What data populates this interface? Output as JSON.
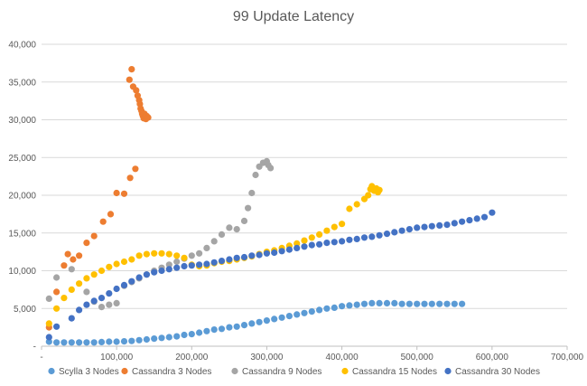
{
  "chart_data": {
    "type": "scatter",
    "title": "99 Update Latency",
    "xlabel": "",
    "ylabel": "",
    "xlim": [
      0,
      700000
    ],
    "ylim": [
      0,
      40000
    ],
    "x_ticks": [
      0,
      100000,
      200000,
      300000,
      400000,
      500000,
      600000,
      700000
    ],
    "x_tick_labels": [
      "-",
      "100,000",
      "200,000",
      "300,000",
      "400,000",
      "500,000",
      "600,000",
      "700,000"
    ],
    "y_ticks": [
      0,
      5000,
      10000,
      15000,
      20000,
      25000,
      30000,
      35000,
      40000
    ],
    "y_tick_labels": [
      "-",
      "5,000",
      "10,000",
      "15,000",
      "20,000",
      "25,000",
      "30,000",
      "35,000",
      "40,000"
    ],
    "grid": true,
    "legend_position": "bottom",
    "series": [
      {
        "name": "Scylla 3 Nodes",
        "color": "#5b9bd5",
        "points": [
          [
            10000,
            600
          ],
          [
            20000,
            500
          ],
          [
            30000,
            500
          ],
          [
            40000,
            500
          ],
          [
            50000,
            500
          ],
          [
            60000,
            500
          ],
          [
            70000,
            500
          ],
          [
            80000,
            550
          ],
          [
            90000,
            600
          ],
          [
            100000,
            600
          ],
          [
            110000,
            650
          ],
          [
            120000,
            700
          ],
          [
            130000,
            800
          ],
          [
            140000,
            900
          ],
          [
            150000,
            1000
          ],
          [
            160000,
            1100
          ],
          [
            170000,
            1200
          ],
          [
            180000,
            1300
          ],
          [
            190000,
            1500
          ],
          [
            200000,
            1600
          ],
          [
            210000,
            1800
          ],
          [
            220000,
            2000
          ],
          [
            230000,
            2200
          ],
          [
            240000,
            2300
          ],
          [
            250000,
            2500
          ],
          [
            260000,
            2600
          ],
          [
            270000,
            2800
          ],
          [
            280000,
            3000
          ],
          [
            290000,
            3200
          ],
          [
            300000,
            3400
          ],
          [
            310000,
            3600
          ],
          [
            320000,
            3800
          ],
          [
            330000,
            4000
          ],
          [
            340000,
            4200
          ],
          [
            350000,
            4400
          ],
          [
            360000,
            4600
          ],
          [
            370000,
            4800
          ],
          [
            380000,
            5000
          ],
          [
            390000,
            5100
          ],
          [
            400000,
            5300
          ],
          [
            410000,
            5400
          ],
          [
            420000,
            5500
          ],
          [
            430000,
            5600
          ],
          [
            440000,
            5700
          ],
          [
            450000,
            5700
          ],
          [
            460000,
            5700
          ],
          [
            470000,
            5700
          ],
          [
            480000,
            5600
          ],
          [
            490000,
            5600
          ],
          [
            500000,
            5600
          ],
          [
            510000,
            5600
          ],
          [
            520000,
            5600
          ],
          [
            530000,
            5600
          ],
          [
            540000,
            5600
          ],
          [
            550000,
            5600
          ],
          [
            560000,
            5600
          ]
        ]
      },
      {
        "name": "Cassandra 3 Nodes",
        "color": "#ed7d31",
        "points": [
          [
            10000,
            2500
          ],
          [
            20000,
            7200
          ],
          [
            30000,
            10700
          ],
          [
            35000,
            12200
          ],
          [
            42000,
            11500
          ],
          [
            50000,
            12000
          ],
          [
            60000,
            13700
          ],
          [
            70000,
            14600
          ],
          [
            82000,
            16500
          ],
          [
            92000,
            17500
          ],
          [
            100000,
            20300
          ],
          [
            110000,
            20200
          ],
          [
            118000,
            22300
          ],
          [
            125000,
            23500
          ],
          [
            117000,
            35300
          ],
          [
            120000,
            36700
          ],
          [
            122000,
            34400
          ],
          [
            126000,
            33900
          ],
          [
            128000,
            33200
          ],
          [
            130000,
            32600
          ],
          [
            131000,
            32100
          ],
          [
            132000,
            31500
          ],
          [
            133000,
            31200
          ],
          [
            134000,
            30800
          ],
          [
            135000,
            30500
          ],
          [
            136000,
            30200
          ],
          [
            137000,
            30800
          ],
          [
            138000,
            30400
          ],
          [
            139000,
            30100
          ],
          [
            140000,
            30500
          ],
          [
            142000,
            30300
          ]
        ]
      },
      {
        "name": "Cassandra 9 Nodes",
        "color": "#a5a5a5",
        "points": [
          [
            10000,
            6300
          ],
          [
            20000,
            9100
          ],
          [
            40000,
            10200
          ],
          [
            60000,
            7200
          ],
          [
            70000,
            5900
          ],
          [
            80000,
            5200
          ],
          [
            90000,
            5500
          ],
          [
            100000,
            5700
          ],
          [
            110000,
            8000
          ],
          [
            120000,
            8500
          ],
          [
            130000,
            9000
          ],
          [
            140000,
            9500
          ],
          [
            150000,
            10000
          ],
          [
            160000,
            10400
          ],
          [
            170000,
            10800
          ],
          [
            180000,
            11200
          ],
          [
            190000,
            11600
          ],
          [
            200000,
            12000
          ],
          [
            210000,
            12300
          ],
          [
            220000,
            13000
          ],
          [
            230000,
            13900
          ],
          [
            240000,
            14800
          ],
          [
            250000,
            15700
          ],
          [
            260000,
            15500
          ],
          [
            270000,
            16600
          ],
          [
            275000,
            18300
          ],
          [
            280000,
            20300
          ],
          [
            285000,
            22700
          ],
          [
            290000,
            23800
          ],
          [
            295000,
            24300
          ],
          [
            300000,
            24500
          ],
          [
            302000,
            24000
          ],
          [
            305000,
            23600
          ]
        ]
      },
      {
        "name": "Cassandra 15 Nodes",
        "color": "#ffc000",
        "points": [
          [
            10000,
            3000
          ],
          [
            20000,
            5000
          ],
          [
            30000,
            6400
          ],
          [
            40000,
            7500
          ],
          [
            50000,
            8300
          ],
          [
            60000,
            9000
          ],
          [
            70000,
            9500
          ],
          [
            80000,
            10000
          ],
          [
            90000,
            10500
          ],
          [
            100000,
            10900
          ],
          [
            110000,
            11200
          ],
          [
            120000,
            11500
          ],
          [
            130000,
            12000
          ],
          [
            140000,
            12200
          ],
          [
            150000,
            12300
          ],
          [
            160000,
            12300
          ],
          [
            170000,
            12200
          ],
          [
            180000,
            12000
          ],
          [
            190000,
            11700
          ],
          [
            200000,
            10800
          ],
          [
            210000,
            10600
          ],
          [
            220000,
            10700
          ],
          [
            230000,
            11000
          ],
          [
            240000,
            11200
          ],
          [
            250000,
            11300
          ],
          [
            260000,
            11500
          ],
          [
            270000,
            11700
          ],
          [
            280000,
            11900
          ],
          [
            290000,
            12200
          ],
          [
            300000,
            12500
          ],
          [
            310000,
            12700
          ],
          [
            320000,
            13000
          ],
          [
            330000,
            13300
          ],
          [
            340000,
            13600
          ],
          [
            350000,
            14000
          ],
          [
            360000,
            14400
          ],
          [
            370000,
            14800
          ],
          [
            380000,
            15300
          ],
          [
            390000,
            15800
          ],
          [
            400000,
            16200
          ],
          [
            410000,
            18200
          ],
          [
            420000,
            18800
          ],
          [
            430000,
            19500
          ],
          [
            435000,
            20000
          ],
          [
            438000,
            20800
          ],
          [
            440000,
            21200
          ],
          [
            443000,
            20600
          ],
          [
            446000,
            20900
          ],
          [
            448000,
            20400
          ],
          [
            450000,
            20700
          ]
        ]
      },
      {
        "name": "Cassandra 30 Nodes",
        "color": "#4472c4",
        "points": [
          [
            10000,
            1200
          ],
          [
            20000,
            2600
          ],
          [
            40000,
            3700
          ],
          [
            50000,
            4800
          ],
          [
            60000,
            5500
          ],
          [
            70000,
            6000
          ],
          [
            80000,
            6400
          ],
          [
            90000,
            7000
          ],
          [
            100000,
            7600
          ],
          [
            110000,
            8100
          ],
          [
            120000,
            8600
          ],
          [
            130000,
            9100
          ],
          [
            140000,
            9500
          ],
          [
            150000,
            9800
          ],
          [
            160000,
            10000
          ],
          [
            170000,
            10200
          ],
          [
            180000,
            10400
          ],
          [
            190000,
            10600
          ],
          [
            200000,
            10700
          ],
          [
            210000,
            10800
          ],
          [
            220000,
            10900
          ],
          [
            230000,
            11100
          ],
          [
            240000,
            11300
          ],
          [
            250000,
            11500
          ],
          [
            260000,
            11700
          ],
          [
            270000,
            11800
          ],
          [
            280000,
            12000
          ],
          [
            290000,
            12100
          ],
          [
            300000,
            12300
          ],
          [
            310000,
            12400
          ],
          [
            320000,
            12600
          ],
          [
            330000,
            12800
          ],
          [
            340000,
            13000
          ],
          [
            350000,
            13200
          ],
          [
            360000,
            13400
          ],
          [
            370000,
            13500
          ],
          [
            380000,
            13700
          ],
          [
            390000,
            13800
          ],
          [
            400000,
            13900
          ],
          [
            410000,
            14100
          ],
          [
            420000,
            14200
          ],
          [
            430000,
            14400
          ],
          [
            440000,
            14500
          ],
          [
            450000,
            14700
          ],
          [
            460000,
            14900
          ],
          [
            470000,
            15100
          ],
          [
            480000,
            15300
          ],
          [
            490000,
            15500
          ],
          [
            500000,
            15700
          ],
          [
            510000,
            15800
          ],
          [
            520000,
            15900
          ],
          [
            530000,
            16000
          ],
          [
            540000,
            16100
          ],
          [
            550000,
            16300
          ],
          [
            560000,
            16500
          ],
          [
            570000,
            16700
          ],
          [
            580000,
            16900
          ],
          [
            590000,
            17100
          ],
          [
            600000,
            17700
          ]
        ]
      }
    ]
  }
}
